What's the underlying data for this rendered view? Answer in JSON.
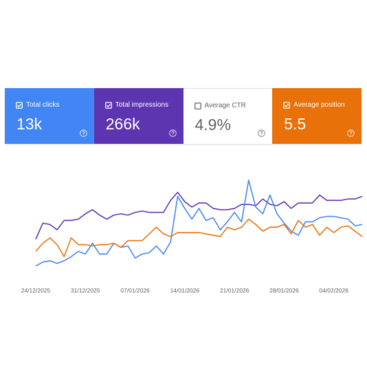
{
  "cards": [
    {
      "label": "Total clicks",
      "value": "13k",
      "selected": true,
      "color": "#4285f4"
    },
    {
      "label": "Total impressions",
      "value": "266k",
      "selected": true,
      "color": "#5e35b1"
    },
    {
      "label": "Average CTR",
      "value": "4.9%",
      "selected": false,
      "color": "#ffffff"
    },
    {
      "label": "Average position",
      "value": "5.5",
      "selected": true,
      "color": "#e8710a"
    }
  ],
  "chart_data": {
    "type": "line",
    "ylim": [
      0,
      100
    ],
    "xlim": [
      0,
      46
    ],
    "xticks": [
      {
        "value": 0,
        "label": "24/12/2025"
      },
      {
        "value": 7,
        "label": "31/12/2025"
      },
      {
        "value": 14,
        "label": "07/01/2026"
      },
      {
        "value": 21,
        "label": "14/01/2026"
      },
      {
        "value": 28,
        "label": "21/01/2026"
      },
      {
        "value": 35,
        "label": "28/01/2026"
      },
      {
        "value": 42,
        "label": "04/02/2026"
      }
    ],
    "series": [
      {
        "color": "#5e35b1",
        "values": [
          32,
          44,
          43,
          39,
          46,
          46,
          47,
          51,
          54,
          50,
          47,
          50,
          51,
          50,
          52,
          53,
          52,
          52,
          52,
          61,
          67,
          60,
          56,
          59,
          59,
          55,
          54,
          54,
          55,
          58,
          58,
          57,
          62,
          58,
          57,
          60,
          55,
          59,
          59,
          59,
          65,
          61,
          61,
          61,
          62,
          62,
          64
        ]
      },
      {
        "color": "#4285f4",
        "values": [
          12,
          15,
          16,
          14,
          16,
          19,
          23,
          21,
          29,
          21,
          21,
          29,
          26,
          27,
          18,
          21,
          22,
          27,
          21,
          30,
          64,
          55,
          47,
          55,
          46,
          48,
          39,
          45,
          52,
          45,
          76,
          56,
          51,
          65,
          51,
          44,
          38,
          35,
          45,
          45,
          48,
          49,
          49,
          48,
          47,
          42,
          43
        ]
      },
      {
        "color": "#e8710a",
        "values": [
          23,
          29,
          33,
          28,
          19,
          33,
          28,
          28,
          27,
          28,
          28,
          29,
          26,
          31,
          31,
          31,
          36,
          41,
          36,
          34,
          37,
          37,
          37,
          37,
          36,
          35,
          34,
          41,
          39,
          41,
          47,
          43,
          38,
          41,
          41,
          43,
          36,
          46,
          41,
          43,
          35,
          41,
          37,
          41,
          42,
          38,
          34
        ]
      }
    ]
  }
}
